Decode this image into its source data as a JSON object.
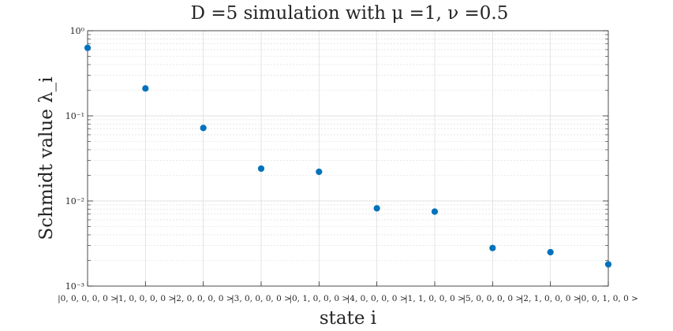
{
  "chart_data": {
    "type": "scatter",
    "title": "D =5 simulation with μ =1, ν =0.5",
    "xlabel": "state i",
    "ylabel": "Schmidt value λ_i",
    "y_scale": "log",
    "ylim": [
      0.001,
      1
    ],
    "grid": true,
    "categories": [
      "|0, 0, 0, 0, 0 >",
      "|1, 0, 0, 0, 0 >",
      "|2, 0, 0, 0, 0 >",
      "|3, 0, 0, 0, 0 >",
      "|0, 1, 0, 0, 0 >",
      "|4, 0, 0, 0, 0 >",
      "|1, 1, 0, 0, 0 >",
      "|5, 0, 0, 0, 0 >",
      "|2, 1, 0, 0, 0 >",
      "|0, 0, 1, 0, 0 >"
    ],
    "values": [
      0.63,
      0.21,
      0.072,
      0.024,
      0.022,
      0.0082,
      0.0075,
      0.0028,
      0.0025,
      0.0018
    ],
    "ytick_labels": [
      "10⁰",
      "10⁻¹",
      "10⁻²",
      "10⁻³"
    ],
    "marker_color": "#0072BD",
    "grid_color": "#d9d9d9"
  }
}
